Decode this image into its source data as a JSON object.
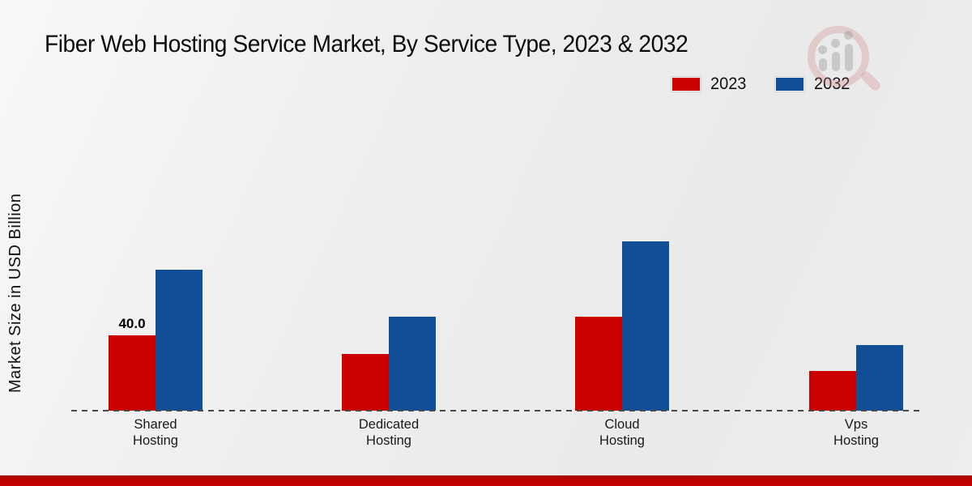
{
  "title": "Fiber Web Hosting Service Market, By Service Type, 2023 & 2032",
  "colors": {
    "series_2023": "#cc0000",
    "series_2032": "#114e96",
    "footer_band": "#c00000",
    "background": "#ededed",
    "baseline": "#4a4a4a"
  },
  "icons": {
    "watermark": "magnifier-bar-chart-logo"
  },
  "chart_data": {
    "type": "bar",
    "title": "Fiber Web Hosting Service Market, By Service Type, 2023 & 2032",
    "xlabel": "",
    "ylabel": "Market Size in USD Billion",
    "categories": [
      "Shared Hosting",
      "Dedicated Hosting",
      "Cloud Hosting",
      "Vps Hosting"
    ],
    "series": [
      {
        "name": "2023",
        "color": "#cc0000",
        "values": [
          40.0,
          30.0,
          50.0,
          21.0
        ],
        "data_labels": [
          "40.0",
          "",
          "",
          ""
        ]
      },
      {
        "name": "2032",
        "color": "#114e96",
        "values": [
          75.0,
          50.0,
          90.0,
          35.0
        ],
        "data_labels": [
          "",
          "",
          "",
          ""
        ]
      }
    ],
    "ylim": [
      0,
      100
    ],
    "grid": false,
    "y_axis_ticks_visible": false,
    "legend_position": "top-right",
    "baseline_style": "dashed"
  }
}
